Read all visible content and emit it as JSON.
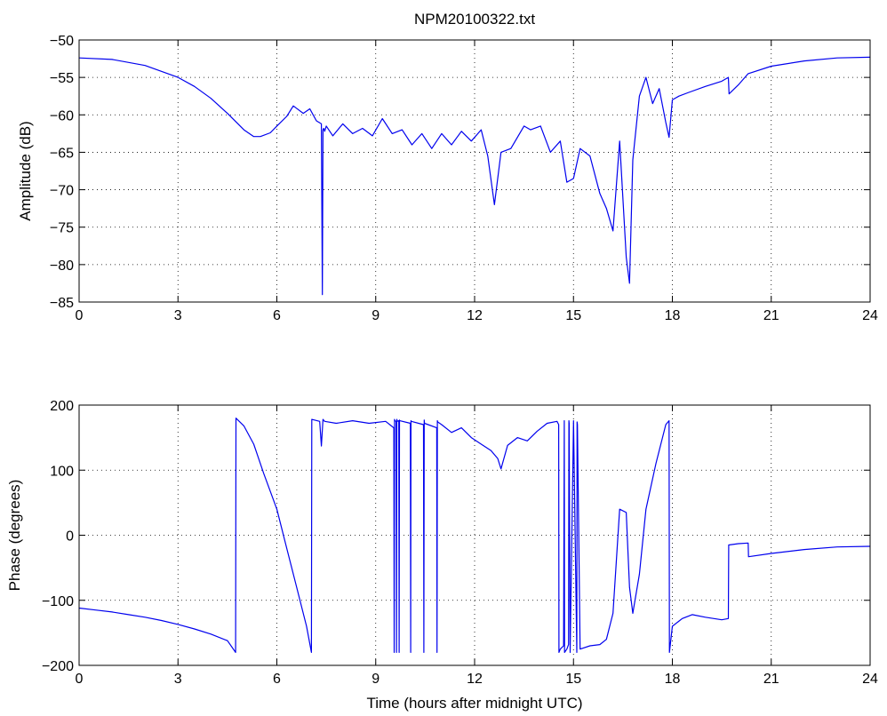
{
  "chart_data": [
    {
      "type": "line",
      "title": "NPM20100322.txt",
      "xlabel": "",
      "ylabel": "Amplitude (dB)",
      "xlim": [
        0,
        24
      ],
      "ylim": [
        -85,
        -50
      ],
      "xticks": [
        "0",
        "3",
        "6",
        "9",
        "12",
        "15",
        "18",
        "21",
        "24"
      ],
      "yticks": [
        "-85",
        "-80",
        "-75",
        "-70",
        "-65",
        "-60",
        "-55",
        "-50"
      ],
      "grid": true,
      "color": "#0000ee",
      "series": [
        {
          "x": [
            0,
            1,
            2,
            3,
            3.5,
            4,
            4.5,
            5,
            5.3,
            5.5,
            5.8,
            6.0,
            6.3,
            6.5,
            6.8,
            7.0,
            7.2,
            7.35,
            7.38,
            7.4,
            7.42,
            7.45,
            7.5,
            7.7,
            8.0,
            8.3,
            8.6,
            8.9,
            9.2,
            9.5,
            9.8,
            10.1,
            10.4,
            10.7,
            11.0,
            11.3,
            11.6,
            11.9,
            12.2,
            12.4,
            12.6,
            12.8,
            13.1,
            13.5,
            13.7,
            14.0,
            14.3,
            14.6,
            14.8,
            15.0,
            15.2,
            15.5,
            15.8,
            16.0,
            16.2,
            16.4,
            16.6,
            16.7,
            16.8,
            17.0,
            17.2,
            17.4,
            17.6,
            17.8,
            17.9,
            18.0,
            18.2,
            18.5,
            19.0,
            19.5,
            19.7,
            19.72,
            20.0,
            20.3,
            21.0,
            22.0,
            23.0,
            24.0
          ],
          "y": [
            -52.4,
            -52.6,
            -53.4,
            -55.0,
            -56.2,
            -57.8,
            -59.8,
            -62.0,
            -62.9,
            -62.9,
            -62.4,
            -61.5,
            -60.2,
            -58.8,
            -59.8,
            -59.2,
            -60.8,
            -61.2,
            -84.0,
            -62.0,
            -61.8,
            -62.2,
            -61.5,
            -62.8,
            -61.2,
            -62.5,
            -61.8,
            -62.8,
            -60.5,
            -62.5,
            -62.0,
            -64.0,
            -62.5,
            -64.5,
            -62.5,
            -64.0,
            -62.2,
            -63.5,
            -62.0,
            -65.5,
            -72.0,
            -65.0,
            -64.5,
            -61.5,
            -62.0,
            -61.5,
            -65.0,
            -63.5,
            -69.0,
            -68.5,
            -64.5,
            -65.5,
            -70.5,
            -72.5,
            -75.5,
            -63.5,
            -79.0,
            -82.5,
            -66.0,
            -57.5,
            -55.0,
            -58.5,
            -56.5,
            -61.0,
            -63.0,
            -58.0,
            -57.5,
            -57.0,
            -56.2,
            -55.5,
            -55.0,
            -57.2,
            -56.0,
            -54.5,
            -53.5,
            -52.8,
            -52.4,
            -52.3
          ]
        }
      ]
    },
    {
      "type": "line",
      "title": "",
      "xlabel": "Time (hours after midnight UTC)",
      "ylabel": "Phase (degrees)",
      "xlim": [
        0,
        24
      ],
      "ylim": [
        -200,
        200
      ],
      "xticks": [
        "0",
        "3",
        "6",
        "9",
        "12",
        "15",
        "18",
        "21",
        "24"
      ],
      "yticks": [
        "-200",
        "-100",
        "0",
        "100",
        "200"
      ],
      "grid": true,
      "color": "#0000ee",
      "series": [
        {
          "x": [
            0,
            0.5,
            1.0,
            1.5,
            2.0,
            2.5,
            3.0,
            3.5,
            4.0,
            4.5,
            4.75,
            4.76,
            5.0,
            5.3,
            5.6,
            6.0,
            6.3,
            6.6,
            6.9,
            7.05,
            7.06,
            7.3,
            7.35,
            7.4,
            7.45,
            7.8,
            8.3,
            8.8,
            9.3,
            9.55,
            9.56,
            9.57,
            9.58,
            9.62,
            9.63,
            9.64,
            9.65,
            9.7,
            9.71,
            9.72,
            9.73,
            10.05,
            10.06,
            10.07,
            10.08,
            10.45,
            10.46,
            10.47,
            10.48,
            10.85,
            10.86,
            10.87,
            10.88,
            11.0,
            11.3,
            11.6,
            11.9,
            12.2,
            12.5,
            12.7,
            12.8,
            13.0,
            13.3,
            13.6,
            13.9,
            14.2,
            14.5,
            14.55,
            14.56,
            14.6,
            14.7,
            14.72,
            14.73,
            14.8,
            14.85,
            14.86,
            14.87,
            14.9,
            15.0,
            15.1,
            15.11,
            15.12,
            15.2,
            15.5,
            15.8,
            16.0,
            16.2,
            16.4,
            16.6,
            16.7,
            16.8,
            17.0,
            17.2,
            17.5,
            17.8,
            17.9,
            17.91,
            18.0,
            18.3,
            18.6,
            19.0,
            19.5,
            19.7,
            19.71,
            20.0,
            20.3,
            20.31,
            21.0,
            22.0,
            23.0,
            24.0
          ],
          "y": [
            -112,
            -115,
            -118,
            -122,
            -126,
            -131,
            -137,
            -144,
            -152,
            -162,
            -180,
            180,
            168,
            140,
            95,
            40,
            -20,
            -80,
            -140,
            -180,
            178,
            175,
            137,
            178,
            175,
            172,
            176,
            172,
            175,
            165,
            -180,
            178,
            176,
            175,
            -180,
            178,
            175,
            176,
            -180,
            177,
            176,
            172,
            -180,
            176,
            175,
            170,
            -180,
            177,
            172,
            165,
            -180,
            176,
            174,
            170,
            158,
            165,
            150,
            140,
            130,
            118,
            102,
            138,
            150,
            145,
            160,
            172,
            175,
            170,
            -180,
            -175,
            -170,
            176,
            -180,
            -175,
            -168,
            176,
            172,
            -180,
            176,
            -180,
            174,
            170,
            -175,
            -170,
            -168,
            -160,
            -120,
            40,
            35,
            -80,
            -120,
            -60,
            40,
            110,
            170,
            176,
            -180,
            -140,
            -128,
            -122,
            -126,
            -130,
            -128,
            -15,
            -13,
            -12,
            -33,
            -28,
            -22,
            -18,
            -17
          ]
        }
      ]
    }
  ]
}
